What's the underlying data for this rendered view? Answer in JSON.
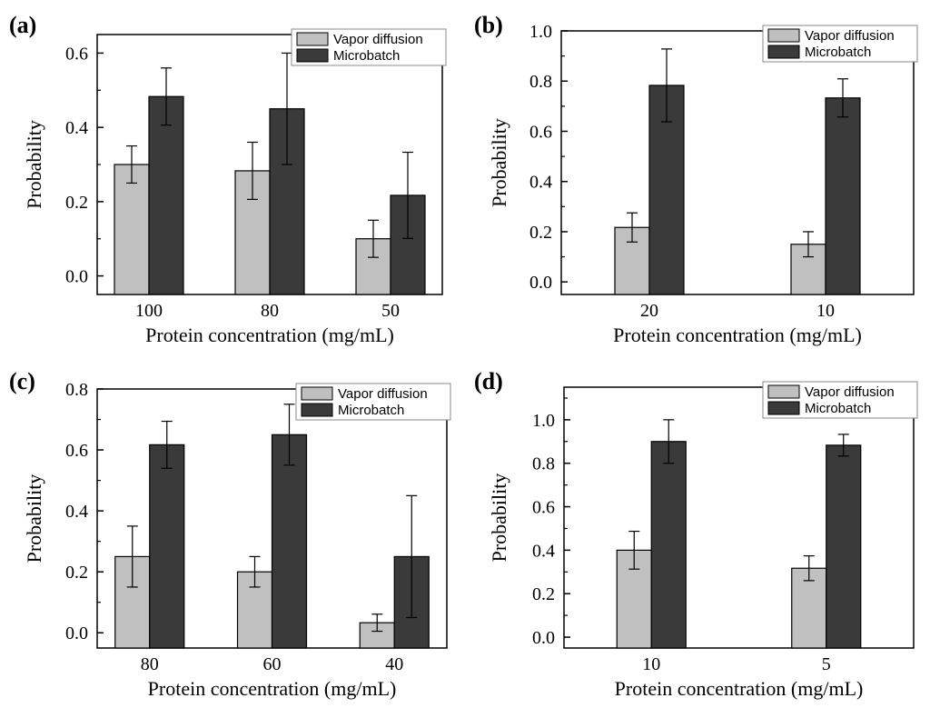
{
  "colors": {
    "vapor": "#c0c0c0",
    "micro": "#3a3a3a",
    "axis": "#000000"
  },
  "chart_data": [
    {
      "panel": "(a)",
      "type": "bar",
      "xlabel": "Protein concentration (mg/mL)",
      "ylabel": "Probability",
      "categories": [
        "100",
        "80",
        "50"
      ],
      "ylim": [
        -0.05,
        0.65
      ],
      "yticks": [
        "0.0",
        "0.2",
        "0.4",
        "0.6"
      ],
      "legend": "top-right",
      "series": [
        {
          "name": "Vapor diffusion",
          "values": [
            0.3,
            0.283,
            0.1
          ],
          "errors": [
            0.05,
            0.077,
            0.05
          ]
        },
        {
          "name": "Microbatch",
          "values": [
            0.483,
            0.45,
            0.217
          ],
          "errors": [
            0.077,
            0.15,
            0.116
          ]
        }
      ]
    },
    {
      "panel": "(b)",
      "type": "bar",
      "xlabel": "Protein concentration (mg/mL)",
      "ylabel": "Probability",
      "categories": [
        "20",
        "10"
      ],
      "ylim": [
        -0.05,
        1.0
      ],
      "yticks": [
        "0.0",
        "0.2",
        "0.4",
        "0.6",
        "0.8",
        "1.0"
      ],
      "legend": "top-right",
      "series": [
        {
          "name": "Vapor diffusion",
          "values": [
            0.217,
            0.15
          ],
          "errors": [
            0.058,
            0.05
          ]
        },
        {
          "name": "Microbatch",
          "values": [
            0.783,
            0.733
          ],
          "errors": [
            0.145,
            0.076
          ]
        }
      ]
    },
    {
      "panel": "(c)",
      "type": "bar",
      "xlabel": "Protein concentration (mg/mL)",
      "ylabel": "Probability",
      "categories": [
        "80",
        "60",
        "40"
      ],
      "ylim": [
        -0.05,
        0.8
      ],
      "yticks": [
        "0.0",
        "0.2",
        "0.4",
        "0.6",
        "0.8"
      ],
      "legend": "top-right",
      "series": [
        {
          "name": "Vapor diffusion",
          "values": [
            0.25,
            0.2,
            0.033
          ],
          "errors": [
            0.1,
            0.05,
            0.028
          ]
        },
        {
          "name": "Microbatch",
          "values": [
            0.617,
            0.65,
            0.25
          ],
          "errors": [
            0.077,
            0.1,
            0.2
          ]
        }
      ]
    },
    {
      "panel": "(d)",
      "type": "bar",
      "xlabel": "Protein concentration (mg/mL)",
      "ylabel": "Probability",
      "categories": [
        "10",
        "5"
      ],
      "ylim": [
        -0.05,
        1.15
      ],
      "yticks": [
        "0.0",
        "0.2",
        "0.4",
        "0.6",
        "0.8",
        "1.0"
      ],
      "legend": "top-right",
      "series": [
        {
          "name": "Vapor diffusion",
          "values": [
            0.4,
            0.317
          ],
          "errors": [
            0.087,
            0.057
          ]
        },
        {
          "name": "Microbatch",
          "values": [
            0.9,
            0.883
          ],
          "errors": [
            0.1,
            0.05
          ]
        }
      ]
    }
  ]
}
